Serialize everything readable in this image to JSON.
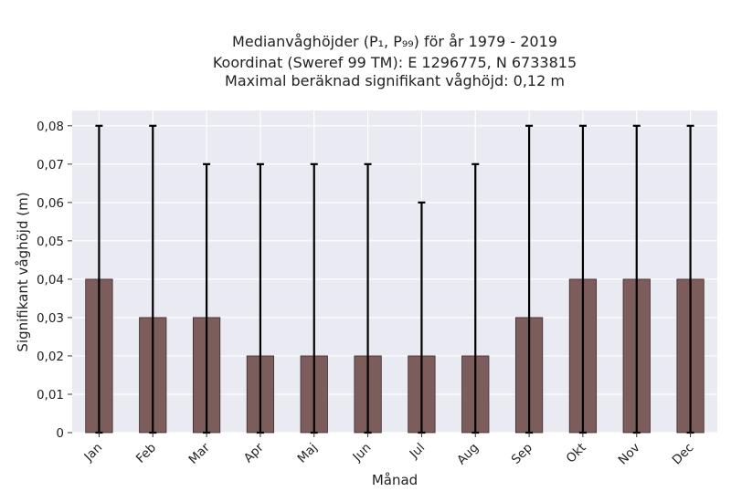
{
  "chart_data": {
    "type": "bar",
    "title_lines": [
      "Medianvåghöjder (P₁, P₉₉) för år 1979 - 2019",
      "Koordinat (Sweref 99 TM): E 1296775, N 6733815",
      "Maximal beräknad signifikant våghöjd: 0,12 m"
    ],
    "xlabel": "Månad",
    "ylabel": "Signifikant våghöjd (m)",
    "categories": [
      "Jan",
      "Feb",
      "Mar",
      "Apr",
      "Maj",
      "Jun",
      "Jul",
      "Aug",
      "Sep",
      "Okt",
      "Nov",
      "Dec"
    ],
    "values": [
      0.04,
      0.03,
      0.03,
      0.02,
      0.02,
      0.02,
      0.02,
      0.02,
      0.03,
      0.04,
      0.04,
      0.04
    ],
    "err_low": [
      0,
      0,
      0,
      0,
      0,
      0,
      0,
      0,
      0,
      0,
      0,
      0
    ],
    "err_high": [
      0.08,
      0.08,
      0.07,
      0.07,
      0.07,
      0.07,
      0.06,
      0.07,
      0.08,
      0.08,
      0.08,
      0.08
    ],
    "ylim": [
      0,
      0.084
    ],
    "yticks": [
      0,
      0.01,
      0.02,
      0.03,
      0.04,
      0.05,
      0.06,
      0.07,
      0.08
    ],
    "ytick_labels": [
      "0",
      "0,01",
      "0,02",
      "0,03",
      "0,04",
      "0,05",
      "0,06",
      "0,07",
      "0,08"
    ],
    "grid": true,
    "colors": {
      "bar": "#7d5c5c",
      "bar_edge": "#3a2a2a",
      "plot_bg": "#eaeaf2",
      "grid": "#ffffff",
      "errorbar": "#000000"
    }
  }
}
